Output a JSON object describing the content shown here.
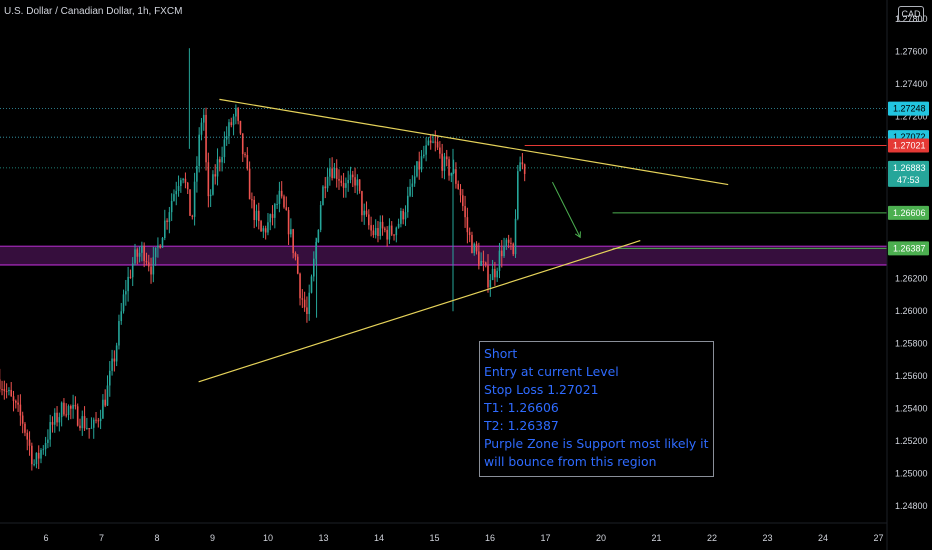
{
  "header": {
    "symbol_title": "U.S. Dollar / Canadian Dollar, 1h, FXCM",
    "currency": "CAD"
  },
  "note": {
    "lines": [
      "Short",
      "Entry at current Level",
      "Stop Loss 1.27021",
      "T1: 1.26606",
      "T2: 1.26387",
      "Purple Zone is Support most likely it",
      "will bounce from this region"
    ]
  },
  "colors": {
    "background": "#000000",
    "up_candle": "#26a69a",
    "down_candle": "#ef5350",
    "trendline": "#e6d35a",
    "purple_zone": "#9c27b0",
    "stop_loss": "#e53935",
    "target": "#4caf50",
    "price_line": "#26a69a",
    "note_text": "#2f6bff"
  },
  "chart_data": {
    "type": "candlestick",
    "instrument": "U.S. Dollar / Canadian Dollar",
    "timeframe": "1h",
    "source": "FXCM",
    "y_axis": {
      "range": [
        1.2478,
        1.2782
      ],
      "ticks": [
        "1.24800",
        "1.25000",
        "1.25200",
        "1.25400",
        "1.25600",
        "1.25800",
        "1.26000",
        "1.26200",
        "1.26400",
        "1.26600",
        "1.26800",
        "1.27000",
        "1.27200",
        "1.27400",
        "1.27600",
        "1.27800"
      ]
    },
    "x_axis": {
      "ticks": [
        {
          "label": "6",
          "hour": 0
        },
        {
          "label": "7",
          "hour": 24
        },
        {
          "label": "8",
          "hour": 48
        },
        {
          "label": "9",
          "hour": 72
        },
        {
          "label": "10",
          "hour": 96
        },
        {
          "label": "13",
          "hour": 120
        },
        {
          "label": "14",
          "hour": 144
        },
        {
          "label": "15",
          "hour": 168
        },
        {
          "label": "16",
          "hour": 192
        },
        {
          "label": "17",
          "hour": 216
        },
        {
          "label": "20",
          "hour": 240
        },
        {
          "label": "21",
          "hour": 264
        },
        {
          "label": "22",
          "hour": 288
        },
        {
          "label": "23",
          "hour": 312
        },
        {
          "label": "24",
          "hour": 336
        },
        {
          "label": "27",
          "hour": 360
        }
      ]
    },
    "price_path": [
      [
        -20,
        1.2558
      ],
      [
        -10,
        1.2532
      ],
      [
        -5,
        1.2505
      ],
      [
        2,
        1.2528
      ],
      [
        8,
        1.2542
      ],
      [
        14,
        1.2535
      ],
      [
        20,
        1.2526
      ],
      [
        26,
        1.2548
      ],
      [
        30,
        1.2575
      ],
      [
        34,
        1.2612
      ],
      [
        38,
        1.2632
      ],
      [
        42,
        1.2638
      ],
      [
        46,
        1.2626
      ],
      [
        50,
        1.2648
      ],
      [
        55,
        1.2672
      ],
      [
        59,
        1.2688
      ],
      [
        63,
        1.2655
      ],
      [
        66,
        1.2702
      ],
      [
        68,
        1.2728
      ],
      [
        70,
        1.2665
      ],
      [
        74,
        1.269
      ],
      [
        78,
        1.2708
      ],
      [
        82,
        1.2722
      ],
      [
        84,
        1.2705
      ],
      [
        86,
        1.2692
      ],
      [
        89,
        1.2665
      ],
      [
        93,
        1.2648
      ],
      [
        97,
        1.2655
      ],
      [
        101,
        1.267
      ],
      [
        105,
        1.2652
      ],
      [
        108,
        1.2632
      ],
      [
        110,
        1.2612
      ],
      [
        113,
        1.2596
      ],
      [
        116,
        1.2632
      ],
      [
        119,
        1.267
      ],
      [
        122,
        1.269
      ],
      [
        126,
        1.2685
      ],
      [
        130,
        1.2676
      ],
      [
        134,
        1.2682
      ],
      [
        137,
        1.266
      ],
      [
        141,
        1.2648
      ],
      [
        145,
        1.265
      ],
      [
        149,
        1.2648
      ],
      [
        153,
        1.2656
      ],
      [
        157,
        1.267
      ],
      [
        160,
        1.2685
      ],
      [
        164,
        1.2698
      ],
      [
        168,
        1.2703
      ],
      [
        172,
        1.269
      ],
      [
        176,
        1.2685
      ],
      [
        179,
        1.2675
      ],
      [
        182,
        1.265
      ],
      [
        185,
        1.2638
      ],
      [
        188,
        1.263
      ],
      [
        191,
        1.262
      ],
      [
        194,
        1.2625
      ],
      [
        197,
        1.2638
      ],
      [
        200,
        1.264
      ],
      [
        202,
        1.2632
      ],
      [
        203,
        1.266
      ],
      [
        204,
        1.268
      ],
      [
        205,
        1.2692
      ],
      [
        207,
        1.2688
      ]
    ],
    "candle_count": 230,
    "candle_start_hour": -20,
    "candle_end_hour": 207,
    "key_levels": [
      {
        "price": 1.27248,
        "kind": "dotted",
        "badge": "1.27248",
        "badge_color": "#22c5e0"
      },
      {
        "price": 1.27072,
        "kind": "dotted",
        "badge": "1.27072",
        "badge_color": "#22c5e0"
      },
      {
        "price": 1.27021,
        "kind": "stop_loss",
        "badge": "1.27021",
        "badge_color": "#e53935"
      },
      {
        "price": 1.26883,
        "kind": "current_price",
        "badge": "1.26883",
        "badge_sub": "47:53",
        "badge_color": "#26a69a"
      },
      {
        "price": 1.26606,
        "kind": "target_1",
        "badge": "1.26606",
        "badge_color": "#4caf50"
      },
      {
        "price": 1.26387,
        "kind": "target_2",
        "badge": "1.26387",
        "badge_color": "#4caf50"
      }
    ],
    "support_zone": {
      "top": 1.264,
      "bottom": 1.26285
    },
    "trendlines": [
      {
        "name": "descending resistance",
        "from": {
          "hour": 75,
          "price": 1.27305
        },
        "to": {
          "hour": 295,
          "price": 1.2678
        }
      },
      {
        "name": "ascending support",
        "from": {
          "hour": 66,
          "price": 1.25565
        },
        "to": {
          "hour": 257,
          "price": 1.26435
        }
      }
    ],
    "arrow": {
      "from": {
        "hour": 219,
        "price": 1.26795
      },
      "to": {
        "hour": 231,
        "price": 1.26455
      }
    },
    "target_line_start_hour": 245,
    "legend": "none",
    "grid": false
  }
}
